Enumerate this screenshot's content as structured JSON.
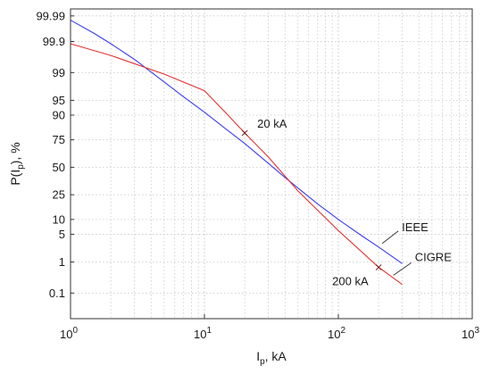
{
  "chart_data": {
    "type": "line",
    "xscale": "log",
    "yscale": "normal-probability",
    "xlim": [
      1,
      1000
    ],
    "ylim_percent": [
      0.01,
      99.995
    ],
    "xlabel": "I",
    "xlabel_sub": "p",
    "xlabel_unit": ", kA",
    "ylabel": "P(I",
    "ylabel_sub": "p",
    "ylabel_unit": "), %",
    "x_ticks": [
      {
        "value": 1,
        "base": "10",
        "exp": "0"
      },
      {
        "value": 10,
        "base": "10",
        "exp": "1"
      },
      {
        "value": 100,
        "base": "10",
        "exp": "2"
      },
      {
        "value": 1000,
        "base": "10",
        "exp": "3"
      }
    ],
    "y_ticks": [
      {
        "value": 99.99,
        "label": "99.99"
      },
      {
        "value": 99.9,
        "label": "99.9"
      },
      {
        "value": 99,
        "label": "99"
      },
      {
        "value": 95,
        "label": "95"
      },
      {
        "value": 90,
        "label": "90"
      },
      {
        "value": 75,
        "label": "75"
      },
      {
        "value": 50,
        "label": "50"
      },
      {
        "value": 25,
        "label": "25"
      },
      {
        "value": 10,
        "label": "10"
      },
      {
        "value": 5,
        "label": "5"
      },
      {
        "value": 1,
        "label": "1"
      },
      {
        "value": 0.1,
        "label": "0.1"
      }
    ],
    "grid": true,
    "series": [
      {
        "name": "IEEE",
        "color": "#3b3bf0",
        "x": [
          1,
          1.5,
          2,
          3,
          5,
          7,
          10,
          15,
          20,
          30,
          40,
          50,
          70,
          100,
          150,
          200,
          300
        ],
        "y": [
          99.985,
          99.95,
          99.88,
          99.6,
          98.2,
          95.8,
          91.2,
          81.6,
          72.0,
          53.9,
          40.0,
          30.5,
          18.4,
          10.0,
          4.6,
          2.5,
          0.9
        ]
      },
      {
        "name": "CIGRE",
        "color": "#e43232",
        "x": [
          1,
          2,
          5,
          10,
          15,
          20,
          30,
          50,
          100,
          200,
          300
        ],
        "y": [
          99.88,
          99.7,
          98.9,
          97.0,
          90.0,
          80.0,
          60.0,
          28.0,
          6.0,
          0.7,
          0.2
        ]
      }
    ],
    "annotations": [
      {
        "text": "20 kA",
        "x": 20,
        "y": 80
      },
      {
        "text": "200 kA",
        "x": 200,
        "y": 0.7
      }
    ]
  }
}
